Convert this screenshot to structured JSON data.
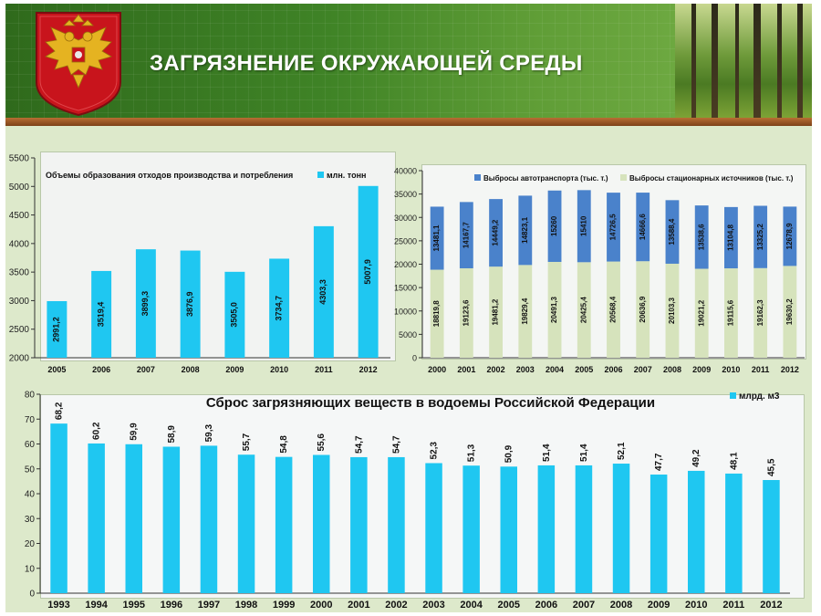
{
  "header": {
    "title": "ЗАГРЯЗНЕНИЕ ОКРУЖАЮЩЕЙ СРЕДЫ"
  },
  "colors": {
    "bar_cyan": "#1fc7f1",
    "bar_blue": "#4a82cb",
    "bar_beige": "#d6e3bc",
    "header_green": "#3f8326",
    "panel_bg": "#dde9cb",
    "emblem_red": "#c8141c",
    "emblem_gold": "#e5b321"
  },
  "chart_data": [
    {
      "id": "waste",
      "type": "bar",
      "title": "Объемы образования отходов производства и потребления",
      "categories": [
        "2005",
        "2006",
        "2007",
        "2008",
        "2009",
        "2010",
        "2011",
        "2012"
      ],
      "series": [
        {
          "name": "млн. тонн",
          "values": [
            2991.2,
            3519.4,
            3899.3,
            3876.9,
            3505.0,
            3734.7,
            4303.3,
            5007.9
          ],
          "labels": [
            "2991,2",
            "3519,4",
            "3899,3",
            "3876,9",
            "3505,0",
            "3734,7",
            "4303,3",
            "5007,9"
          ]
        }
      ],
      "ylim": [
        2000,
        5500
      ],
      "yticks": [
        2000,
        2500,
        3000,
        3500,
        4000,
        4500,
        5000,
        5500
      ],
      "grid": false,
      "legend": "top-right"
    },
    {
      "id": "air",
      "type": "bar",
      "stacked": true,
      "title": "",
      "categories": [
        "2000",
        "2001",
        "2002",
        "2003",
        "2004",
        "2005",
        "2006",
        "2007",
        "2008",
        "2009",
        "2010",
        "2011",
        "2012"
      ],
      "series": [
        {
          "name": "Выбросы стационарных источников (тыс. т.)",
          "values": [
            18819.8,
            19123.6,
            19481.2,
            19829.4,
            20491.3,
            20425.4,
            20568.4,
            20636.9,
            20103.3,
            19021.2,
            19115.6,
            19162.3,
            19630.2
          ],
          "labels": [
            "18819,8",
            "19123,6",
            "19481,2",
            "19829,4",
            "20491,3",
            "20425,4",
            "20568,4",
            "20636,9",
            "20103,3",
            "19021,2",
            "19115,6",
            "19162,3",
            "19630,2"
          ]
        },
        {
          "name": "Выбросы автотранспорта (тыс. т.)",
          "values": [
            13481.1,
            14167.7,
            14449.2,
            14823.1,
            15260,
            15410,
            14726.5,
            14666.6,
            13588.4,
            13538.6,
            13104.8,
            13325.2,
            12678.9
          ],
          "labels": [
            "13481,1",
            "14167,7",
            "14449,2",
            "14823,1",
            "15260",
            "15410",
            "14726,5",
            "14666,6",
            "13588,4",
            "13538,6",
            "13104,8",
            "13325,2",
            "12678,9"
          ]
        }
      ],
      "ylim": [
        0,
        40000
      ],
      "yticks": [
        0,
        5000,
        10000,
        15000,
        20000,
        25000,
        30000,
        35000,
        40000
      ],
      "grid": false,
      "legend": "top"
    },
    {
      "id": "water",
      "type": "bar",
      "title": "Сброс загрязняющих веществ в водоемы Российской Федерации",
      "categories": [
        "1993",
        "1994",
        "1995",
        "1996",
        "1997",
        "1998",
        "1999",
        "2000",
        "2001",
        "2002",
        "2003",
        "2004",
        "2005",
        "2006",
        "2007",
        "2008",
        "2009",
        "2010",
        "2011",
        "2012"
      ],
      "series": [
        {
          "name": "млрд. м3",
          "values": [
            68.2,
            60.2,
            59.9,
            58.9,
            59.3,
            55.7,
            54.8,
            55.6,
            54.7,
            54.7,
            52.3,
            51.3,
            50.9,
            51.4,
            51.4,
            52.1,
            47.7,
            49.2,
            48.1,
            45.5
          ],
          "labels": [
            "68,2",
            "60,2",
            "59,9",
            "58,9",
            "59,3",
            "55,7",
            "54,8",
            "55,6",
            "54,7",
            "54,7",
            "52,3",
            "51,3",
            "50,9",
            "51,4",
            "51,4",
            "52,1",
            "47,7",
            "49,2",
            "48,1",
            "45,5"
          ]
        }
      ],
      "ylim": [
        0,
        80
      ],
      "yticks": [
        0,
        10,
        20,
        30,
        40,
        50,
        60,
        70,
        80
      ],
      "grid": false,
      "legend": "top-right"
    }
  ]
}
